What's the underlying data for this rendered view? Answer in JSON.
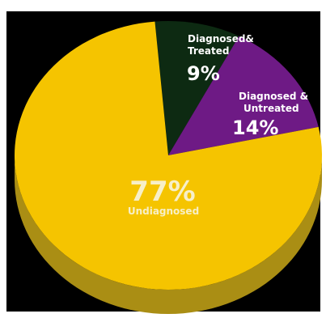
{
  "chart_data": {
    "type": "pie",
    "title": "",
    "slices": [
      {
        "label": "Undiagnosed",
        "value": 77,
        "value_label": "77%",
        "color": "#f5c400"
      },
      {
        "label": "Diagnosed&\nTreated",
        "value": 9,
        "value_label": "9%",
        "color": "#0d2a12"
      },
      {
        "label": "Diagnosed &\nUntreated",
        "value": 14,
        "value_label": "14%",
        "color": "#6e1a85"
      }
    ],
    "style": {
      "background": "#000000",
      "frame_color": "#ffffff",
      "side_color": "#aa8e14",
      "label_color": "#ffffff",
      "undiagnosed_label_color": "#f7efc8"
    }
  }
}
